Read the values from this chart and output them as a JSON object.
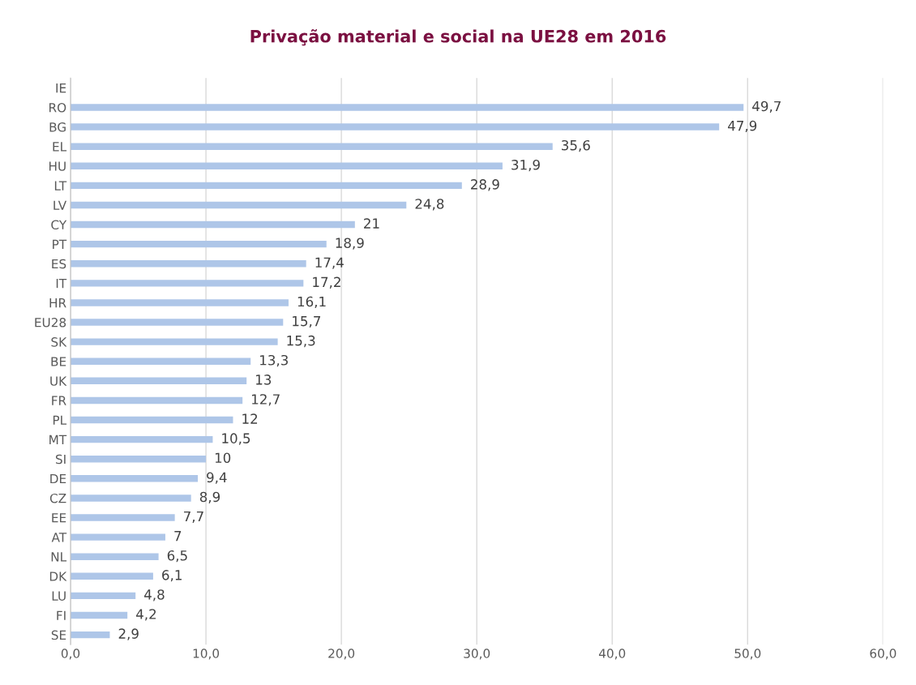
{
  "chart_data": {
    "type": "bar",
    "orientation": "horizontal",
    "title": "Privação material e social na UE28 em 2016",
    "categories": [
      "IE",
      "RO",
      "BG",
      "EL",
      "HU",
      "LT",
      "LV",
      "CY",
      "PT",
      "ES",
      "IT",
      "HR",
      "EU28",
      "SK",
      "BE",
      "UK",
      "FR",
      "PL",
      "MT",
      "SI",
      "DE",
      "CZ",
      "EE",
      "AT",
      "NL",
      "DK",
      "LU",
      "FI",
      "SE"
    ],
    "values": [
      null,
      49.7,
      47.9,
      35.6,
      31.9,
      28.9,
      24.8,
      21,
      18.9,
      17.4,
      17.2,
      16.1,
      15.7,
      15.3,
      13.3,
      13,
      12.7,
      12,
      10.5,
      10,
      9.4,
      8.9,
      7.7,
      7,
      6.5,
      6.1,
      4.8,
      4.2,
      2.9
    ],
    "value_labels": [
      null,
      "49,7",
      "47,9",
      "35,6",
      "31,9",
      "28,9",
      "24,8",
      "21",
      "18,9",
      "17,4",
      "17,2",
      "16,1",
      "15,7",
      "15,3",
      "13,3",
      "13",
      "12,7",
      "12",
      "10,5",
      "10",
      "9,4",
      "8,9",
      "7,7",
      "7",
      "6,5",
      "6,1",
      "4,8",
      "4,2",
      "2,9"
    ],
    "color": "#aec6e8",
    "xlim": [
      0,
      60
    ],
    "xticks": [
      {
        "value": 0,
        "label": "0,0"
      },
      {
        "value": 10,
        "label": "10,0"
      },
      {
        "value": 20,
        "label": "20,0"
      },
      {
        "value": 30,
        "label": "30,0"
      },
      {
        "value": 40,
        "label": "40,0"
      },
      {
        "value": 50,
        "label": "50,0"
      },
      {
        "value": 60,
        "label": "60,0"
      }
    ],
    "grid": "x",
    "legend": false
  }
}
